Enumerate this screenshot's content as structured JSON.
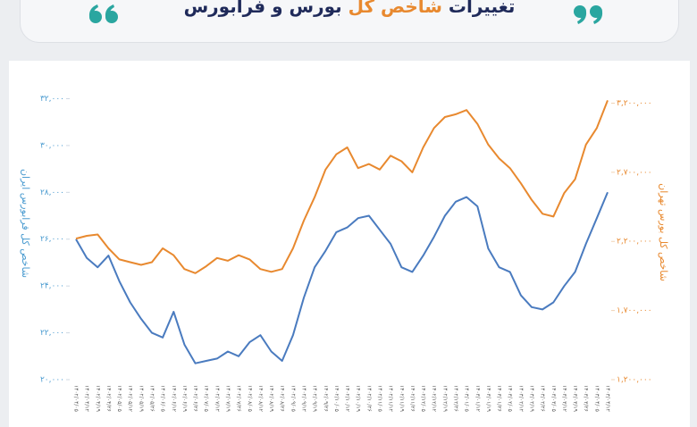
{
  "chart_data": {
    "type": "line",
    "title_before": "تغییرات",
    "title_highlight": "شاخص کل",
    "title_after": "بورس و فرابورس",
    "y_label": "شاخص کل فرابورس ایران",
    "y2_label": "شاخص کل بورس تهران",
    "categories": [
      "۱۴۰۲/۰۴/۰۵",
      "۱۴۰۲/۰۴/۱۲",
      "۱۴۰۲/۰۴/۱۹",
      "۱۴۰۲/۰۴/۲۶",
      "۱۴۰۲/۰۵/۰۵",
      "۱۴۰۲/۰۵/۱۲",
      "۱۴۰۲/۰۵/۱۹",
      "۱۴۰۲/۰۵/۲۶",
      "۱۴۰۲/۰۶/۰۵",
      "۱۴۰۲/۰۶/۱۲",
      "۱۴۰۲/۰۶/۱۹",
      "۱۴۰۲/۰۶/۲۶",
      "۱۴۰۲/۰۷/۰۵",
      "۱۴۰۲/۰۷/۱۲",
      "۱۴۰۲/۰۷/۱۹",
      "۱۴۰۲/۰۷/۲۶",
      "۱۴۰۲/۰۸/۰۵",
      "۱۴۰۲/۰۸/۱۲",
      "۱۴۰۲/۰۸/۱۹",
      "۱۴۰۲/۰۸/۲۶",
      "۱۴۰۲/۰۹/۰۵",
      "۱۴۰۲/۰۹/۱۲",
      "۱۴۰۲/۰۹/۱۹",
      "۱۴۰۲/۰۹/۲۶",
      "۱۴۰۲/۱۰/۰۵",
      "۱۴۰۲/۱۰/۱۲",
      "۱۴۰۲/۱۰/۱۹",
      "۱۴۰۲/۱۰/۲۶",
      "۱۴۰۲/۱۱/۰۵",
      "۱۴۰۲/۱۱/۱۲",
      "۱۴۰۲/۱۱/۱۹",
      "۱۴۰۲/۱۱/۲۶",
      "۱۴۰۲/۱۲/۰۵",
      "۱۴۰۲/۱۲/۱۲",
      "۱۴۰۲/۱۲/۱۹",
      "۱۴۰۲/۱۲/۲۶",
      "۱۴۰۳/۰۱/۰۵",
      "۱۴۰۳/۰۱/۱۲",
      "۱۴۰۳/۰۱/۱۹",
      "۱۴۰۳/۰۱/۲۶",
      "۱۴۰۳/۰۲/۰۵",
      "۱۴۰۳/۰۲/۱۲",
      "۱۴۰۳/۰۲/۱۹",
      "۱۴۰۳/۰۲/۲۶",
      "۱۴۰۳/۰۳/۰۵",
      "۱۴۰۳/۰۳/۱۲",
      "۱۴۰۳/۰۳/۱۹",
      "۱۴۰۳/۰۳/۲۶",
      "۱۴۰۳/۰۴/۰۵",
      "۱۴۰۳/۰۴/۱۲"
    ],
    "series": [
      {
        "color": "#4a7bbf",
        "axis": "y",
        "values": [
          26000,
          25200,
          24800,
          25300,
          24200,
          23300,
          22600,
          22000,
          21800,
          22900,
          21500,
          20700,
          20800,
          20900,
          21200,
          21000,
          21600,
          21900,
          21200,
          20800,
          21900,
          23500,
          24800,
          25500,
          26300,
          26500,
          26900,
          27000,
          26400,
          25800,
          24800,
          24600,
          25300,
          26100,
          27000,
          27600,
          27800,
          27400,
          25600,
          24800,
          24600,
          23600,
          23100,
          23000,
          23300,
          24000,
          24600,
          25800,
          26900,
          28000
        ]
      },
      {
        "color": "#e8892f",
        "axis": "y2",
        "values": [
          2220000,
          2240000,
          2250000,
          2150000,
          2070000,
          2050000,
          2030000,
          2050000,
          2150000,
          2100000,
          2000000,
          1970000,
          2020000,
          2080000,
          2060000,
          2100000,
          2070000,
          2000000,
          1980000,
          2000000,
          2150000,
          2350000,
          2520000,
          2720000,
          2830000,
          2880000,
          2730000,
          2760000,
          2720000,
          2820000,
          2780000,
          2700000,
          2880000,
          3020000,
          3100000,
          3120000,
          3150000,
          3050000,
          2900000,
          2800000,
          2730000,
          2620000,
          2500000,
          2400000,
          2380000,
          2550000,
          2650000,
          2900000,
          3020000,
          3220000
        ]
      }
    ],
    "ylim": [
      20000,
      32400
    ],
    "yticks": [
      {
        "value": 20000,
        "label": "۲۰,۰۰۰"
      },
      {
        "value": 22000,
        "label": "۲۲,۰۰۰"
      },
      {
        "value": 24000,
        "label": "۲۴,۰۰۰"
      },
      {
        "value": 26000,
        "label": "۲۶,۰۰۰"
      },
      {
        "value": 28000,
        "label": "۲۸,۰۰۰"
      },
      {
        "value": 30000,
        "label": "۳۰,۰۰۰"
      },
      {
        "value": 32000,
        "label": "۳۲,۰۰۰"
      }
    ],
    "y2lim": [
      1200000,
      3300000
    ],
    "y2ticks": [
      {
        "value": 1200000,
        "label": "۱,۲۰۰,۰۰۰"
      },
      {
        "value": 1700000,
        "label": "۱,۷۰۰,۰۰۰"
      },
      {
        "value": 2200000,
        "label": "۲,۲۰۰,۰۰۰"
      },
      {
        "value": 2700000,
        "label": "۲,۷۰۰,۰۰۰"
      },
      {
        "value": 3200000,
        "label": "۳,۲۰۰,۰۰۰"
      }
    ]
  }
}
